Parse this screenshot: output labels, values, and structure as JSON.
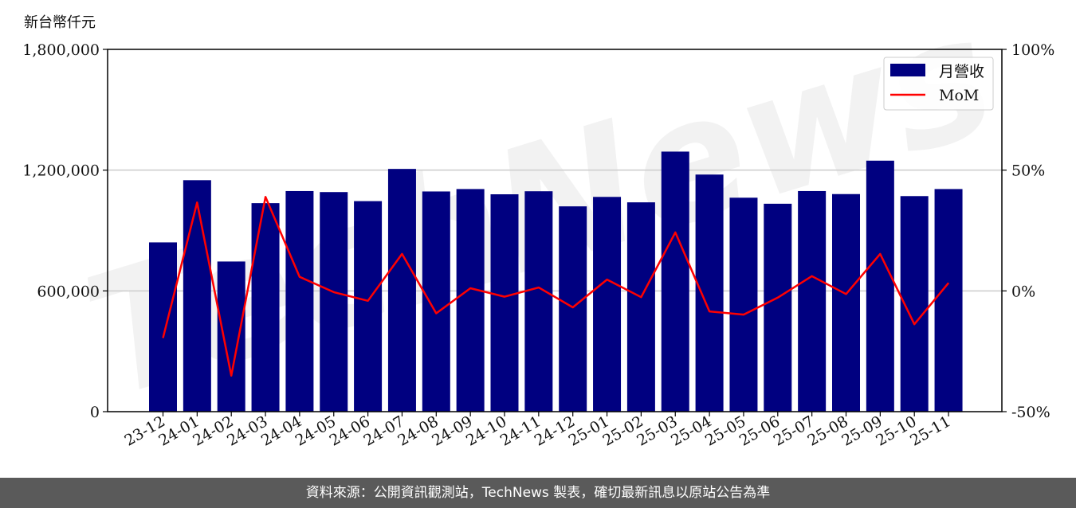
{
  "unit_label": "新台幣仟元",
  "footer_text": "資料來源：公開資訊觀測站，TechNews 製表，確切最新訊息以原站公告為準",
  "watermark_text": "TechNews",
  "colors": {
    "bar": "#000080",
    "line": "#ff0000",
    "grid": "#cccccc",
    "footer_bg": "#5a5a5a"
  },
  "chart_data": {
    "type": "bar",
    "categories": [
      "23-12",
      "24-01",
      "24-02",
      "24-03",
      "24-04",
      "24-05",
      "24-06",
      "24-07",
      "24-08",
      "24-09",
      "24-10",
      "24-11",
      "24-12",
      "25-01",
      "25-02",
      "25-03",
      "25-04",
      "25-05",
      "25-06",
      "25-07",
      "25-08",
      "25-09",
      "25-10",
      "25-11"
    ],
    "series": [
      {
        "name": "月營收",
        "axis": "left",
        "type": "bar",
        "values": [
          841000,
          1150000,
          746000,
          1036000,
          1096000,
          1091000,
          1046000,
          1206000,
          1094000,
          1106000,
          1080000,
          1095000,
          1020000,
          1067000,
          1040000,
          1292000,
          1178000,
          1063000,
          1033000,
          1096000,
          1081000,
          1247000,
          1071000,
          1106000
        ]
      },
      {
        "name": "MoM",
        "axis": "right",
        "type": "line",
        "values": [
          -19.5,
          36.6,
          -35.1,
          38.9,
          5.8,
          -0.5,
          -4.1,
          15.3,
          -9.3,
          1.1,
          -2.4,
          1.4,
          -6.8,
          4.7,
          -2.6,
          24.2,
          -8.5,
          -9.8,
          -2.8,
          6.1,
          -1.3,
          15.3,
          -13.8,
          3.3
        ]
      }
    ],
    "yticks_left": [
      "0",
      "600,000",
      "1,200,000",
      "1,800,000"
    ],
    "yticks_right": [
      "-50%",
      "0%",
      "50%",
      "100%"
    ],
    "ylim_left": [
      0,
      1800000
    ],
    "ylim_right": [
      -50,
      100
    ],
    "grid": "horizontal",
    "legend_position": "top-right"
  }
}
